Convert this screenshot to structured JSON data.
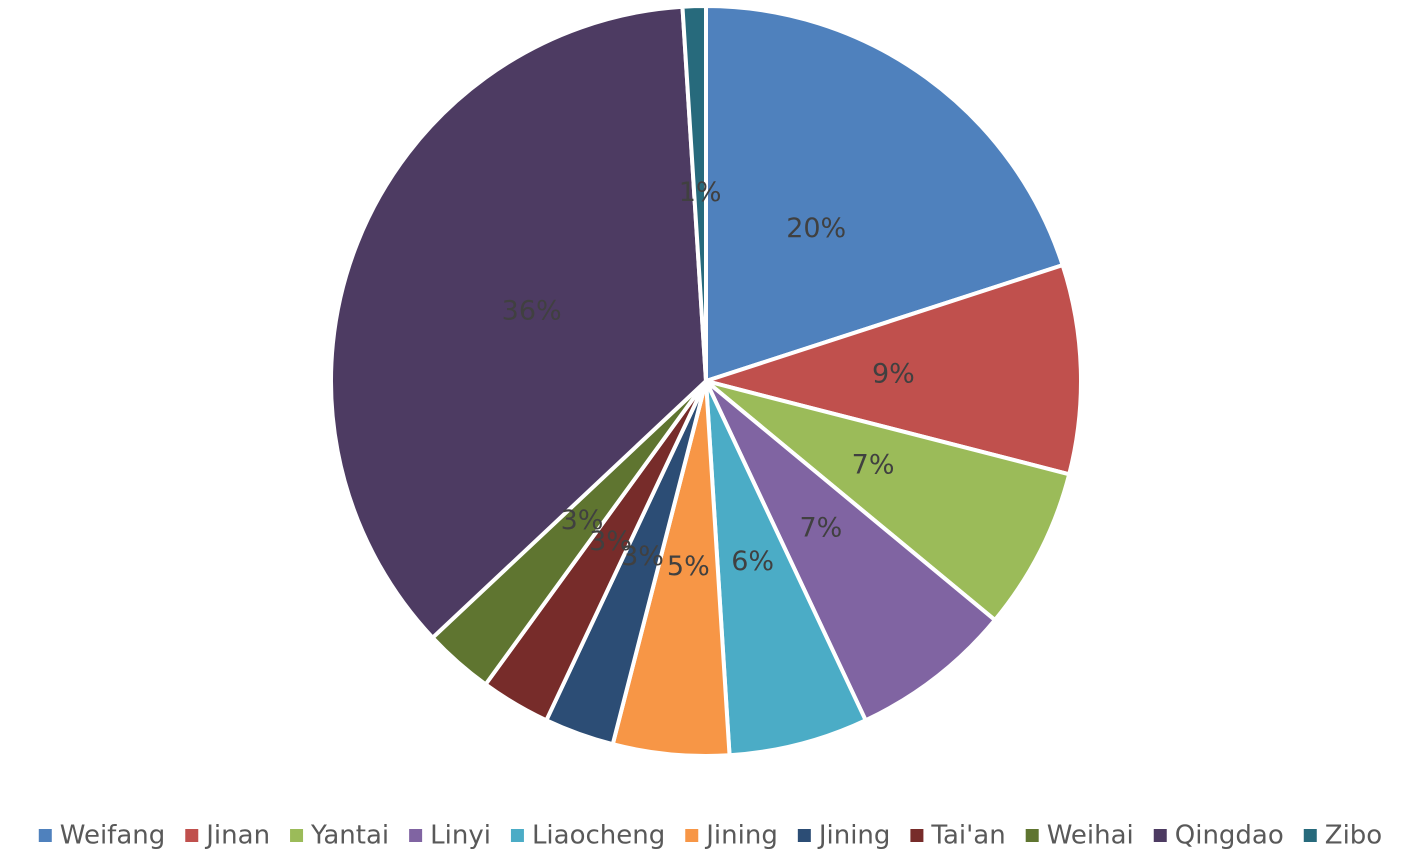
{
  "chart_data": {
    "type": "pie",
    "categories": [
      "Weifang",
      "Jinan",
      "Yantai",
      "Linyi",
      "Liaocheng",
      "Jining",
      "Jining",
      "Tai'an",
      "Weihai",
      "Qingdao",
      "Zibo"
    ],
    "values": [
      20,
      9,
      7,
      7,
      6,
      5,
      3,
      3,
      3,
      36,
      1
    ],
    "value_labels": [
      "20%",
      "9%",
      "7%",
      "7%",
      "6%",
      "5%",
      "3%",
      "3%",
      "3%",
      "36%",
      "1%"
    ],
    "colors": [
      "#4f81bd",
      "#c0504d",
      "#9bbb59",
      "#8064a2",
      "#4bacc6",
      "#f79646",
      "#2c4d75",
      "#772c2a",
      "#5f7530",
      "#4d3b62",
      "#276a7c"
    ],
    "legend": "bottom"
  }
}
